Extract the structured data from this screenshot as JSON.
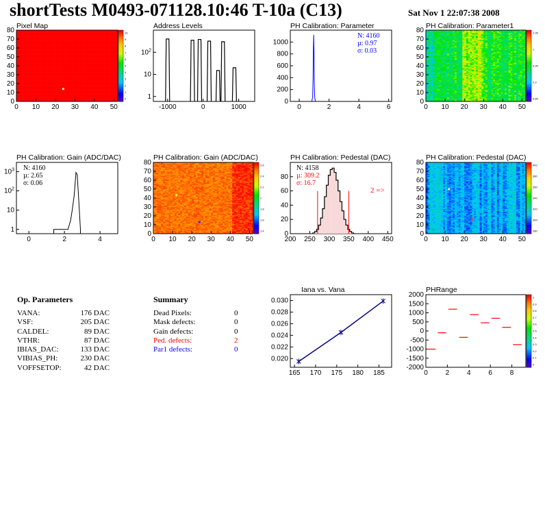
{
  "header": {
    "title": "shortTests M0493-071128.10:46 T-10a (C13)",
    "date": "Sat Nov  1 22:07:38 2008"
  },
  "panels": {
    "pixel_map": {
      "title": "Pixel Map",
      "scale_ticks": [
        "10",
        "9",
        "8",
        "7",
        "6",
        "5",
        "4",
        "3",
        "2",
        "1",
        "0"
      ]
    },
    "address_levels": {
      "title": "Address Levels"
    },
    "ph_param": {
      "title": "PH Calibration: Parameter",
      "stats": {
        "n": "N: 4160",
        "mu": "µ: 0.97",
        "sigma": "σ: 0.03"
      }
    },
    "ph_param1": {
      "title": "PH Calibration: Parameter1",
      "scale_ticks": [
        "1.05",
        "1",
        "0.95",
        "0.9",
        "0.85"
      ]
    },
    "gain_hist": {
      "title": "PH Calibration: Gain (ADC/DAC)",
      "stats": {
        "n": "N: 4160",
        "mu": "µ: 2.65",
        "sigma": "σ: 0.06"
      }
    },
    "gain_map": {
      "title": "PH Calibration: Gain (ADC/DAC)",
      "scale_ticks": [
        "2.6",
        "2.4",
        "2.2",
        "2",
        "1.8",
        "1.6",
        "1.4"
      ]
    },
    "ped_hist": {
      "title": "PH Calibration: Pedestal (DAC)",
      "stats": {
        "n": "N: 4158",
        "mu": "µ: 309.2",
        "sigma": "σ: 16.7"
      },
      "annotation": "2 =>"
    },
    "ped_map": {
      "title": "PH Calibration: Pedestal (DAC)",
      "scale_ticks": [
        "400",
        "380",
        "360",
        "340",
        "320",
        "300",
        "280"
      ]
    },
    "iana": {
      "title": "Iana vs. Vana"
    },
    "phrange": {
      "title": "PHRange",
      "scale_ticks": [
        "1",
        "0.9",
        "0.8",
        "0.7",
        "0.6",
        "0.5",
        "0.4",
        "0.3",
        "0.2",
        "0.1",
        "0"
      ]
    }
  },
  "op_parameters": {
    "title": "Op. Parameters",
    "rows": [
      {
        "name": "VANA:",
        "value": "176 DAC"
      },
      {
        "name": "VSF:",
        "value": "205 DAC"
      },
      {
        "name": "CALDEL:",
        "value": "89 DAC"
      },
      {
        "name": "VTHR:",
        "value": "87 DAC"
      },
      {
        "name": "IBIAS_DAC:",
        "value": "133 DAC"
      },
      {
        "name": "VIBIAS_PH:",
        "value": "230 DAC"
      },
      {
        "name": "VOFFSETOP:",
        "value": "42 DAC"
      }
    ]
  },
  "summary": {
    "title": "Summary",
    "rows": [
      {
        "name": "Dead Pixels:",
        "value": "0",
        "color": "#000000"
      },
      {
        "name": "Mask defects:",
        "value": "0",
        "color": "#000000"
      },
      {
        "name": "Gain defects:",
        "value": "0",
        "color": "#000000"
      },
      {
        "name": "Ped. defects:",
        "value": "2",
        "color": "#ff0000"
      },
      {
        "name": "Par1 defects:",
        "value": "0",
        "color": "#0000ff"
      }
    ]
  },
  "chart_data": [
    {
      "id": "pixel_map",
      "type": "heatmap",
      "title": "Pixel Map",
      "xlim": [
        0,
        52
      ],
      "ylim": [
        0,
        80
      ],
      "xticks": [
        0,
        10,
        20,
        30,
        40,
        50
      ],
      "yticks": [
        0,
        10,
        20,
        30,
        40,
        50,
        60,
        70,
        80
      ],
      "fill": "uniform maximum (10)",
      "zrange": [
        0,
        10
      ],
      "outliers": [
        {
          "x": 24,
          "y": 14,
          "color": "#ffff66"
        }
      ]
    },
    {
      "id": "address_levels",
      "type": "bar",
      "title": "Address Levels",
      "log_y": true,
      "xlim": [
        -1400,
        1450
      ],
      "ylim": [
        0.6,
        1000
      ],
      "xticks": [
        -1000,
        0,
        1000
      ],
      "yticks": [
        1,
        10,
        100
      ],
      "peaks": [
        {
          "x": -1000,
          "value": 400
        },
        {
          "x": -300,
          "value": 350
        },
        {
          "x": -100,
          "value": 380
        },
        {
          "x": 170,
          "value": 320
        },
        {
          "x": 420,
          "value": 15
        },
        {
          "x": 560,
          "value": 300
        },
        {
          "x": 880,
          "value": 20
        }
      ]
    },
    {
      "id": "ph_param",
      "type": "bar",
      "title": "PH Calibration: Parameter",
      "xlim": [
        -0.6,
        6.2
      ],
      "ylim": [
        0,
        1200
      ],
      "xticks": [
        0,
        2,
        4,
        6
      ],
      "yticks": [
        0,
        200,
        400,
        600,
        800,
        1000
      ],
      "x": [
        0.85,
        0.9,
        0.93,
        0.95,
        0.97,
        0.99,
        1.01,
        1.04,
        1.08
      ],
      "values": [
        10,
        80,
        400,
        900,
        1120,
        850,
        300,
        60,
        8
      ],
      "color": "#0000ff"
    },
    {
      "id": "ph_param1",
      "type": "heatmap",
      "title": "PH Calibration: Parameter1",
      "xlim": [
        0,
        52
      ],
      "ylim": [
        0,
        80
      ],
      "xticks": [
        0,
        10,
        20,
        30,
        40,
        50
      ],
      "yticks": [
        0,
        10,
        20,
        30,
        40,
        50,
        60,
        70,
        80
      ],
      "zrange": [
        0.85,
        1.05
      ],
      "pattern": "mostly green/cyan, hotter columns near x=20-30"
    },
    {
      "id": "gain_hist",
      "type": "bar",
      "title": "PH Calibration: Gain (ADC/DAC)",
      "log_y": true,
      "xlim": [
        -0.7,
        5.0
      ],
      "ylim": [
        0.6,
        3000
      ],
      "xticks": [
        0,
        2,
        4
      ],
      "yticks": [
        1,
        10,
        100,
        1000
      ],
      "x": [
        1.4,
        2.2,
        2.35,
        2.45,
        2.55,
        2.65,
        2.72,
        2.8,
        2.9
      ],
      "values": [
        1,
        1,
        3,
        12,
        60,
        900,
        700,
        40,
        1
      ]
    },
    {
      "id": "gain_map",
      "type": "heatmap",
      "title": "PH Calibration: Gain (ADC/DAC)",
      "xlim": [
        0,
        52
      ],
      "ylim": [
        0,
        80
      ],
      "xticks": [
        0,
        10,
        20,
        30,
        40,
        50
      ],
      "yticks": [
        0,
        10,
        20,
        30,
        40,
        50,
        60,
        70,
        80
      ],
      "zrange": [
        1.4,
        2.7
      ],
      "pattern": "red-orange, darker red at right edge",
      "outliers": [
        {
          "x": 12,
          "y": 43,
          "color": "#ffff66"
        },
        {
          "x": 24,
          "y": 13,
          "color": "#3333ff"
        }
      ]
    },
    {
      "id": "ped_hist",
      "type": "bar",
      "title": "PH Calibration: Pedestal (DAC)",
      "xlim": [
        200,
        460
      ],
      "ylim": [
        0,
        100
      ],
      "xticks": [
        200,
        250,
        300,
        350,
        400,
        450
      ],
      "yticks": [
        0,
        20,
        40,
        60,
        80
      ],
      "cut_lines": [
        270,
        350
      ],
      "x": [
        260,
        265,
        270,
        275,
        280,
        285,
        290,
        295,
        300,
        305,
        310,
        315,
        320,
        325,
        330,
        335,
        340,
        345,
        350,
        355,
        360
      ],
      "values": [
        1,
        3,
        6,
        12,
        22,
        35,
        52,
        68,
        82,
        90,
        92,
        86,
        75,
        60,
        45,
        32,
        20,
        12,
        6,
        3,
        1
      ]
    },
    {
      "id": "ped_map",
      "type": "heatmap",
      "title": "PH Calibration: Pedestal (DAC)",
      "xlim": [
        0,
        52
      ],
      "ylim": [
        0,
        80
      ],
      "xticks": [
        0,
        10,
        20,
        30,
        40,
        50
      ],
      "yticks": [
        0,
        10,
        20,
        30,
        40,
        50,
        60,
        70,
        80
      ],
      "zrange": [
        280,
        410
      ],
      "pattern": "blue with lighter cyan columns",
      "outliers": [
        {
          "x": 12,
          "y": 50,
          "color": "#ffff66"
        },
        {
          "x": 24,
          "y": 16,
          "color": "#ff3333"
        }
      ]
    },
    {
      "id": "iana",
      "type": "line",
      "title": "Iana vs. Vana",
      "xlim": [
        164,
        188
      ],
      "ylim": [
        0.0185,
        0.031
      ],
      "xticks": [
        165,
        170,
        175,
        180,
        185
      ],
      "yticks": [
        0.02,
        0.022,
        0.024,
        0.026,
        0.028,
        0.03
      ],
      "x": [
        166,
        176,
        186
      ],
      "y": [
        0.0195,
        0.0245,
        0.0299
      ]
    },
    {
      "id": "phrange",
      "type": "scatter",
      "title": "PHRange",
      "xlim": [
        0,
        9.3
      ],
      "ylim": [
        -2000,
        2000
      ],
      "xticks": [
        0,
        2,
        4,
        6,
        8
      ],
      "yticks": [
        -2000,
        -1500,
        -1000,
        -500,
        0,
        500,
        1000,
        1500,
        2000
      ],
      "x": [
        0.5,
        1.5,
        2.5,
        3.5,
        4.5,
        5.5,
        6.5,
        7.5,
        8.5
      ],
      "y": [
        -1000,
        -100,
        1200,
        -350,
        900,
        450,
        700,
        200,
        -750
      ],
      "z_range": [
        0,
        1
      ]
    }
  ]
}
